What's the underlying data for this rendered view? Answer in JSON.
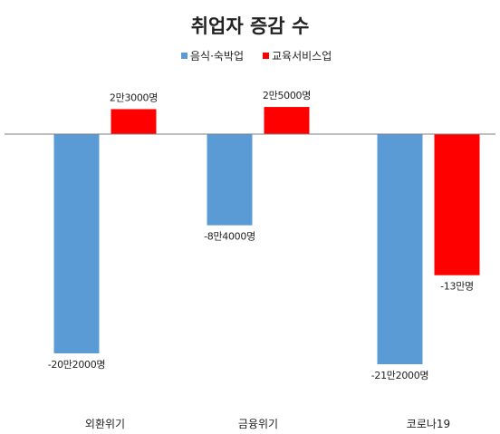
{
  "chart_data": {
    "type": "bar",
    "title": "취업자 증감 수",
    "categories": [
      "외환위기",
      "금융위기",
      "코로나19"
    ],
    "series": [
      {
        "name": "음식·숙박업",
        "color": "#5b9bd5",
        "values": [
          -202000,
          -84000,
          -212000
        ],
        "labels": [
          "-20만2000명",
          "-8만4000명",
          "-21만2000명"
        ]
      },
      {
        "name": "교육서비스업",
        "color": "#ff0000",
        "values": [
          23000,
          25000,
          -130000
        ],
        "labels": [
          "2만3000명",
          "2만5000명",
          "-13만명"
        ]
      }
    ],
    "xlabel": "",
    "ylabel": "",
    "ylim": [
      -230000,
      50000
    ],
    "grid": false,
    "legend_position": "top-center"
  }
}
